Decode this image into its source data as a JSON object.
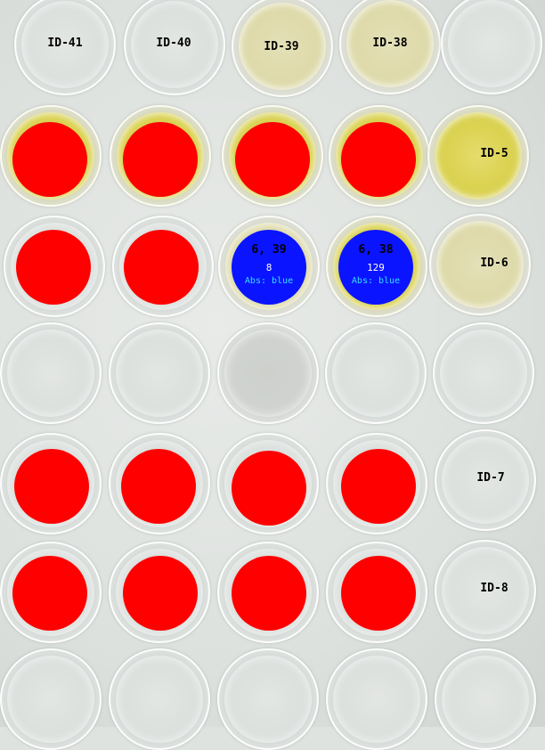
{
  "column_labels": [
    "ID-41",
    "ID-40",
    "ID-39",
    "ID-38"
  ],
  "row_labels": [
    "ID-5",
    "ID-6",
    "ID-7",
    "ID-8"
  ],
  "marker_colors": {
    "red": "#ff0000",
    "blue": "#0a14ff",
    "abs_text": "#33e0ff"
  },
  "detections": [
    {
      "title": "6, 39",
      "count": "8",
      "abs": "Abs: blue"
    },
    {
      "title": "6, 38",
      "count": "129",
      "abs": "Abs: blue"
    }
  ]
}
